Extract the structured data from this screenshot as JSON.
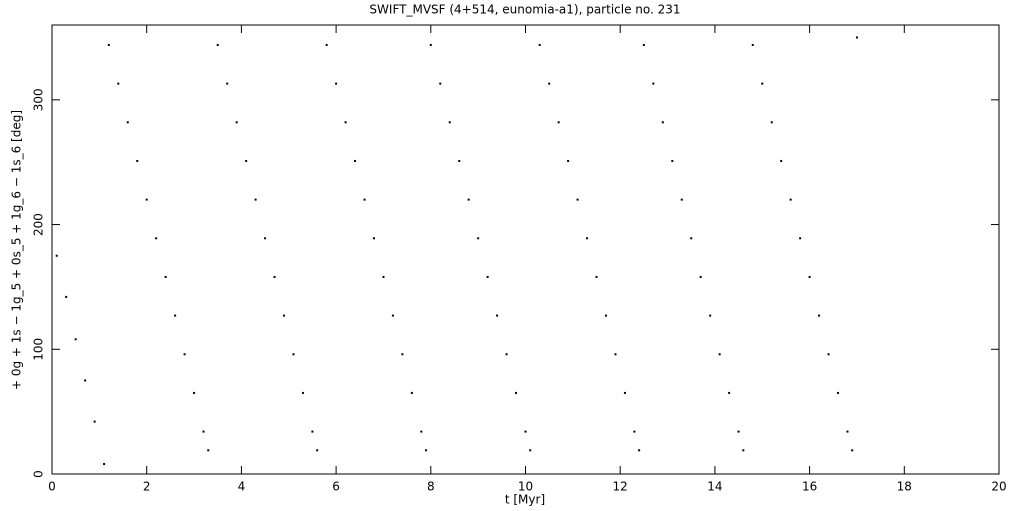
{
  "chart_data": {
    "type": "scatter",
    "title": "SWIFT_MVSF (4+514, eunomia-a1), particle no. 231",
    "x_label": "t [Myr]",
    "y_label": "+ 0g + 1s − 1g_5 + 0s_5 + 1g_6 − 1s_6 [deg]",
    "xlim": [
      0,
      20
    ],
    "ylim": [
      0,
      360
    ],
    "xticks": [
      0,
      2,
      4,
      6,
      8,
      10,
      12,
      14,
      16,
      18,
      20
    ],
    "yticks": [
      0,
      100,
      200,
      300
    ],
    "grid": false,
    "series": [
      {
        "color": "#000000",
        "x": [
          0.1,
          0.3,
          0.5,
          0.7,
          0.9,
          1.1,
          1.2,
          1.4,
          1.6,
          1.8,
          2.0,
          2.2,
          2.4,
          2.6,
          2.8,
          3.0,
          3.2,
          3.3,
          3.5,
          3.7,
          3.9,
          4.1,
          4.3,
          4.5,
          4.7,
          4.9,
          5.1,
          5.3,
          5.5,
          5.6,
          5.8,
          6.0,
          6.2,
          6.4,
          6.6,
          6.8,
          7.0,
          7.2,
          7.4,
          7.6,
          7.8,
          7.9,
          8.0,
          8.2,
          8.4,
          8.6,
          8.8,
          9.0,
          9.2,
          9.4,
          9.6,
          9.8,
          10.0,
          10.1,
          10.3,
          10.5,
          10.7,
          10.9,
          11.1,
          11.3,
          11.5,
          11.7,
          11.9,
          12.1,
          12.3,
          12.4,
          12.5,
          12.7,
          12.9,
          13.1,
          13.3,
          13.5,
          13.7,
          13.9,
          14.1,
          14.3,
          14.5,
          14.6,
          14.8,
          15.0,
          15.2,
          15.4,
          15.6,
          15.8,
          16.0,
          16.2,
          16.4,
          16.6,
          16.8,
          16.9,
          17.0
        ],
        "values": [
          175,
          142,
          108,
          75,
          42,
          8,
          344,
          313,
          282,
          251,
          220,
          189,
          158,
          127,
          96,
          65,
          34,
          19,
          344,
          313,
          282,
          251,
          220,
          189,
          158,
          127,
          96,
          65,
          34,
          19,
          344,
          313,
          282,
          251,
          220,
          189,
          158,
          127,
          96,
          65,
          34,
          19,
          344,
          313,
          282,
          251,
          220,
          189,
          158,
          127,
          96,
          65,
          34,
          19,
          344,
          313,
          282,
          251,
          220,
          189,
          158,
          127,
          96,
          65,
          34,
          19,
          344,
          313,
          282,
          251,
          220,
          189,
          158,
          127,
          96,
          65,
          34,
          19,
          344,
          313,
          282,
          251,
          220,
          189,
          158,
          127,
          96,
          65,
          34,
          19,
          350
        ]
      }
    ]
  }
}
